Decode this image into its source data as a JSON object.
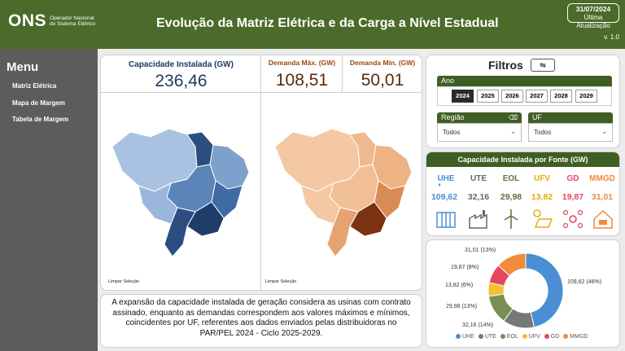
{
  "header": {
    "logo_text": "ONS",
    "logo_subtitle": "Operador Nacional do Sistema Elétrico",
    "title": "Evolução da Matriz Elétrica e da Carga a Nível Estadual",
    "date": "31/07/2024",
    "date_label": "Última Atualização",
    "version": "v. 1.0"
  },
  "sidebar": {
    "title": "Menu",
    "items": [
      {
        "label": "Matriz Elétrica"
      },
      {
        "label": "Mapa de Margem"
      },
      {
        "label": "Tabela de Margem"
      }
    ]
  },
  "kpis": {
    "capacity_label": "Capacidade Instalada (GW)",
    "capacity_value": "236,46",
    "demand_max_label": "Demanda Máx. (GW)",
    "demand_max_value": "108,51",
    "demand_min_label": "Demanda Mín. (GW)",
    "demand_min_value": "50,01"
  },
  "maps": {
    "clear_left": "Limpar Seleção",
    "clear_right": "Limpar Seleção",
    "left_color": "#5b84b8",
    "right_color": "#d98a55"
  },
  "filters": {
    "title": "Filtros",
    "year_label": "Ano",
    "years": [
      "2024",
      "2025",
      "2026",
      "2027",
      "2028",
      "2029"
    ],
    "selected_year": "2024",
    "region_label": "Região",
    "region_value": "Todos",
    "uf_label": "UF",
    "uf_value": "Todos"
  },
  "sources": {
    "title": "Capacidade Instalada por Fonte (GW)",
    "items": [
      {
        "name": "UHE",
        "value": "109,62",
        "color": "#4a8fd4",
        "icon": "dam-icon"
      },
      {
        "name": "UTE",
        "value": "32,16",
        "color": "#777777",
        "icon": "factory-icon"
      },
      {
        "name": "EOL",
        "value": "29,98",
        "color": "#7a8f54",
        "icon": "wind-turbine-icon"
      },
      {
        "name": "UFV",
        "value": "13,82",
        "color": "#f2c12e",
        "icon": "solar-panel-icon"
      },
      {
        "name": "GD",
        "value": "19,87",
        "color": "#e8455f",
        "icon": "distributed-generation-icon"
      },
      {
        "name": "MMGD",
        "value": "31,01",
        "color": "#f08a3c",
        "icon": "house-solar-icon"
      }
    ]
  },
  "donut": {
    "labels": [
      "109,62 (46%)",
      "32,16 (14%)",
      "29,98 (13%)",
      "13,82 (6%)",
      "19,87 (8%)",
      "31,01 (13%)"
    ]
  },
  "chart_data": {
    "type": "pie",
    "categories": [
      "UHE",
      "UTE",
      "EOL",
      "UFV",
      "GD",
      "MMGD"
    ],
    "values": [
      109.62,
      32.16,
      29.98,
      13.82,
      19.87,
      31.01
    ],
    "colors": [
      "#4a8fd4",
      "#777777",
      "#7a8f54",
      "#f2c12e",
      "#e8455f",
      "#f08a3c"
    ],
    "legend": "bottom"
  },
  "footer_text": "A expansão da capacidade instalada de geração considera as usinas com contrato assinado, enquanto as demandas correspondem aos valores máximos e mínimos, coincidentes por UF, referentes aos dados enviados pelas distribuidoras no PAR/PEL 2024 - Ciclo 2025-2029."
}
